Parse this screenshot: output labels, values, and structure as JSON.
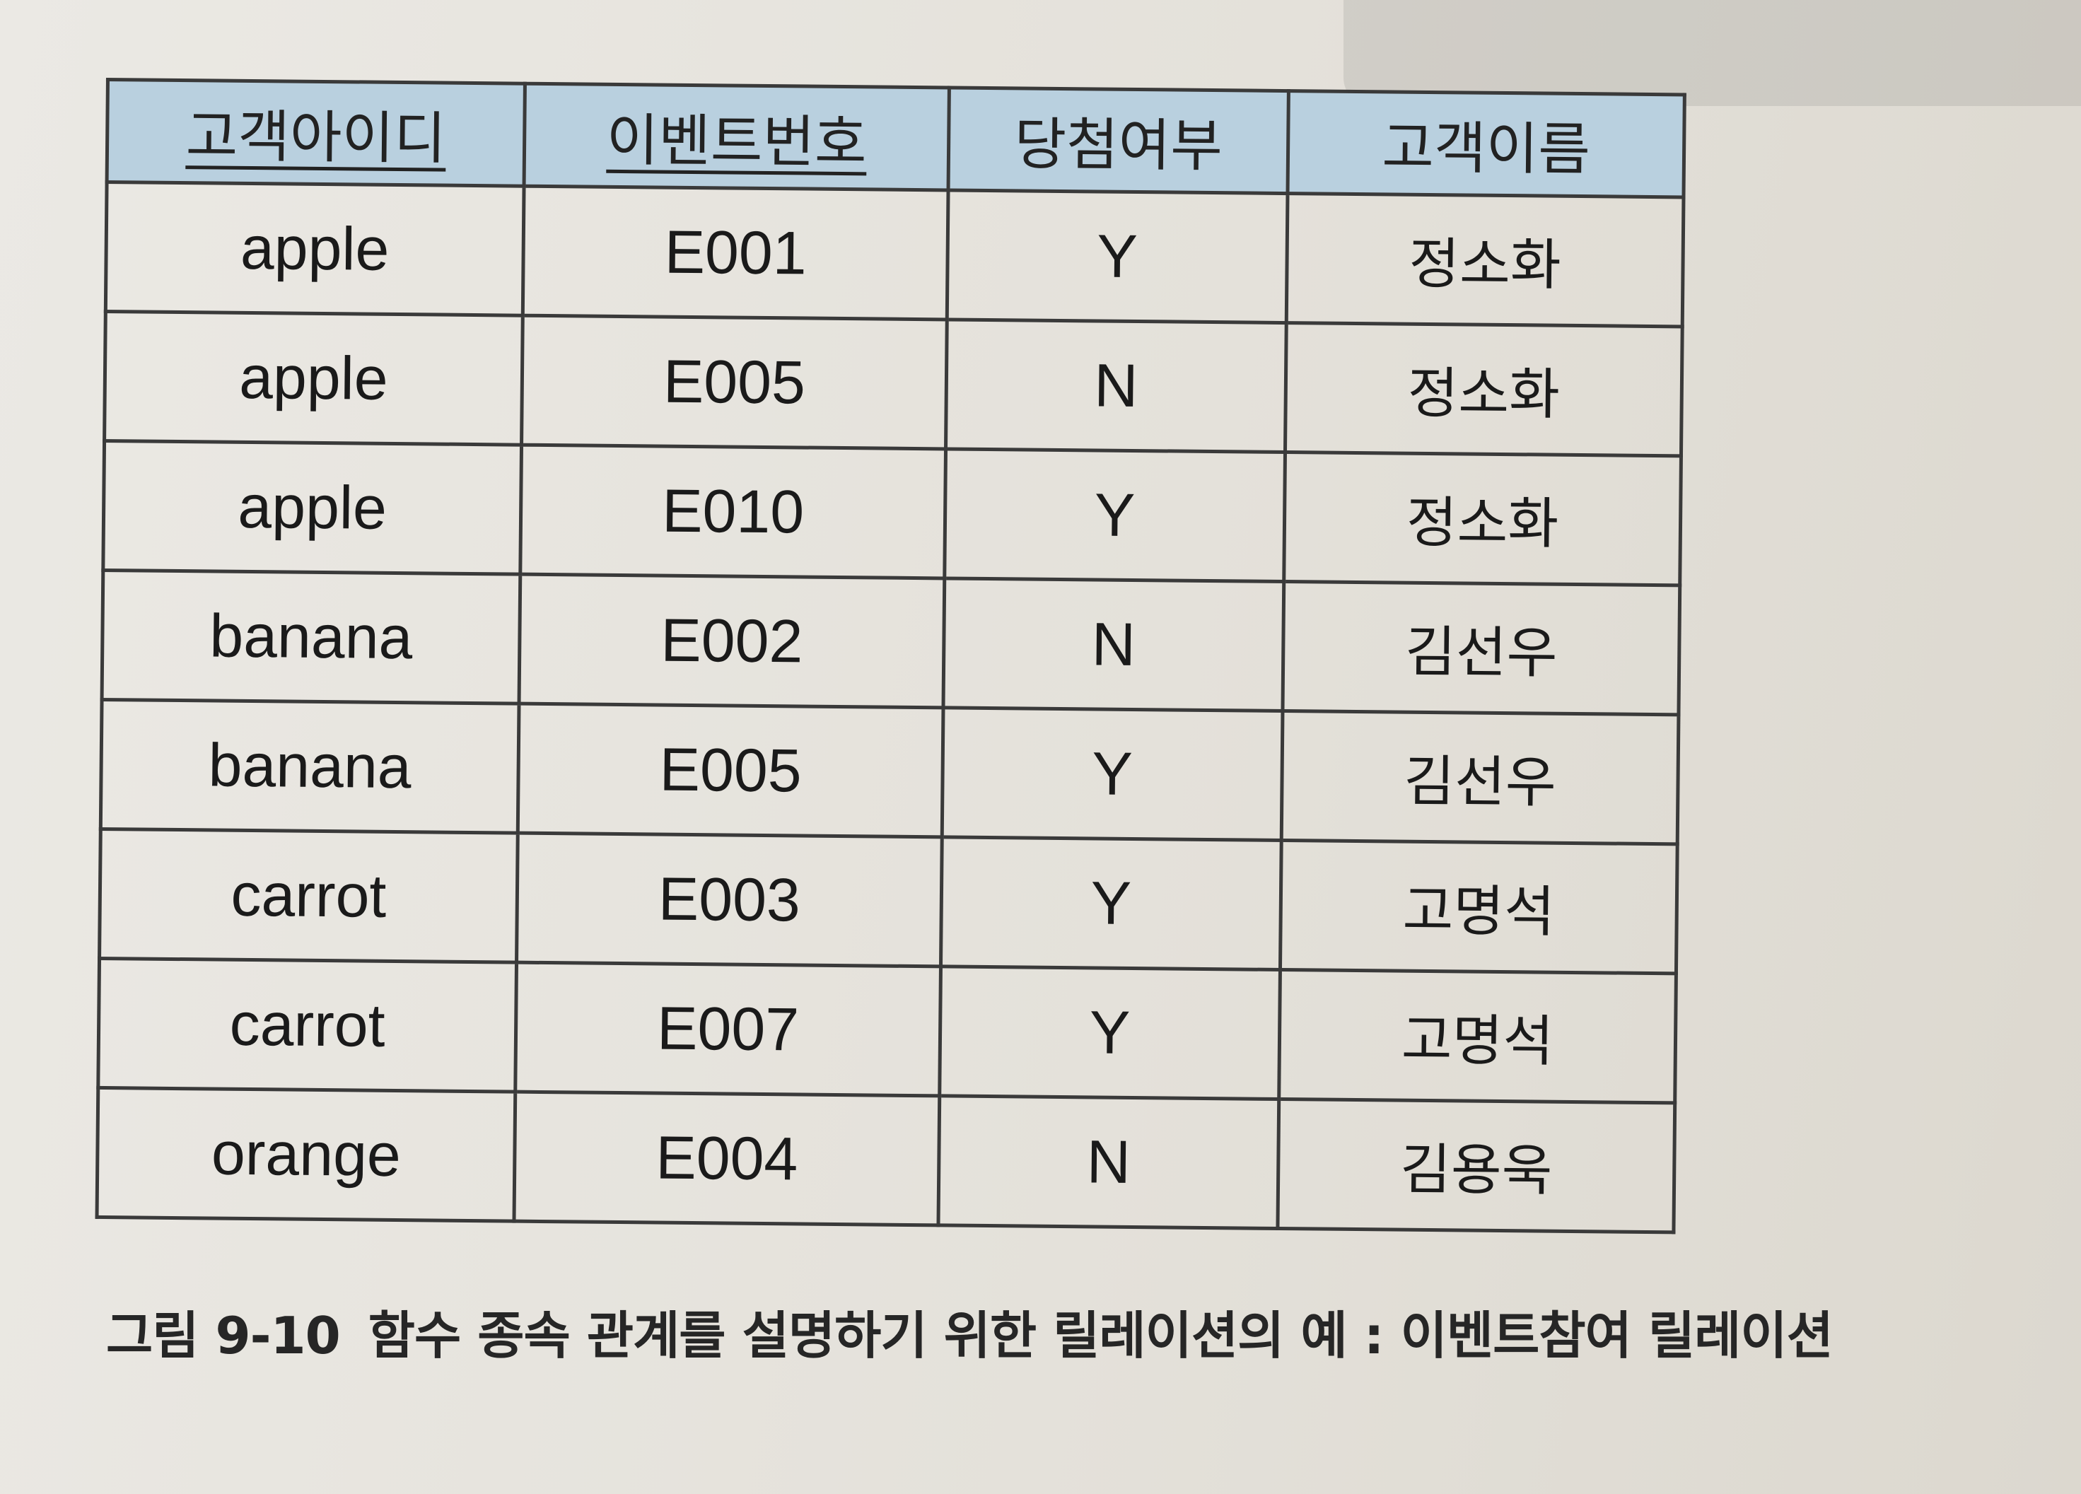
{
  "table": {
    "headers": [
      {
        "label": "고객아이디",
        "key": true
      },
      {
        "label": "이벤트번호",
        "key": true
      },
      {
        "label": "당첨여부",
        "key": false
      },
      {
        "label": "고객이름",
        "key": false
      }
    ],
    "rows": [
      [
        "apple",
        "E001",
        "Y",
        "정소화"
      ],
      [
        "apple",
        "E005",
        "N",
        "정소화"
      ],
      [
        "apple",
        "E010",
        "Y",
        "정소화"
      ],
      [
        "banana",
        "E002",
        "N",
        "김선우"
      ],
      [
        "banana",
        "E005",
        "Y",
        "김선우"
      ],
      [
        "carrot",
        "E003",
        "Y",
        "고명석"
      ],
      [
        "carrot",
        "E007",
        "Y",
        "고명석"
      ],
      [
        "orange",
        "E004",
        "N",
        "김용욱"
      ]
    ],
    "header_color": "#b9d0df"
  },
  "caption": {
    "figure_number": "그림 9-10",
    "text": "함수 종속 관계를 설명하기 위한 릴레이션의 예 : 이벤트참여 릴레이션"
  }
}
